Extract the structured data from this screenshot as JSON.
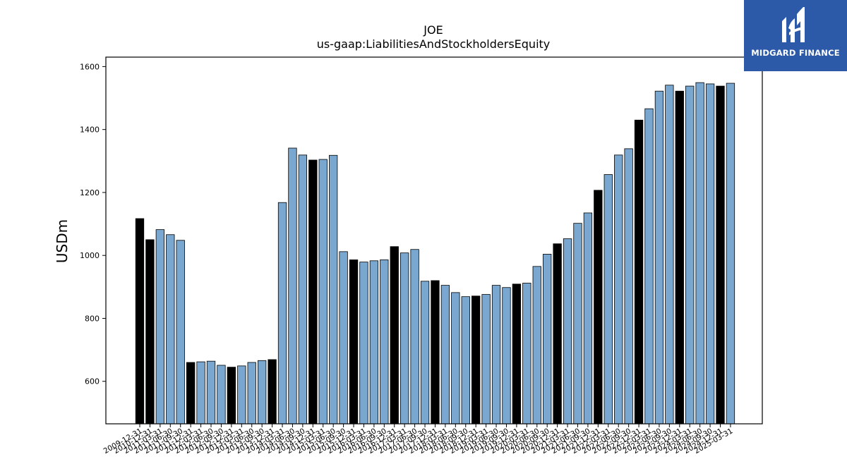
{
  "chart_data": {
    "type": "bar",
    "title": "JOE",
    "subtitle": "us-gaap:LiabilitiesAndStockholdersEquity",
    "ylabel": "USDm",
    "xlabel": "",
    "ylim": [
      465,
      1630
    ],
    "yticks": [
      600,
      800,
      1000,
      1200,
      1400,
      1600
    ],
    "grid": false,
    "colors": {
      "annual": "#000000",
      "quarterly": "#7aa7cf",
      "edge": "#000000"
    },
    "categories": [
      "2009-12-31",
      "2010-12-31",
      "2011-03-31",
      "2011-06-30",
      "2011-09-30",
      "2011-12-31",
      "2012-03-31",
      "2012-06-30",
      "2012-09-30",
      "2012-12-31",
      "2013-03-31",
      "2013-06-30",
      "2013-09-30",
      "2013-12-31",
      "2014-03-31",
      "2014-06-30",
      "2014-09-30",
      "2014-12-31",
      "2015-03-31",
      "2015-06-30",
      "2015-09-30",
      "2015-12-31",
      "2016-03-31",
      "2016-06-30",
      "2016-09-30",
      "2016-12-31",
      "2017-03-31",
      "2017-06-30",
      "2017-09-30",
      "2017-12-31",
      "2018-03-31",
      "2018-06-30",
      "2018-09-30",
      "2018-12-31",
      "2019-03-31",
      "2019-06-30",
      "2019-09-30",
      "2019-12-31",
      "2020-03-31",
      "2020-06-30",
      "2020-09-30",
      "2020-12-31",
      "2021-03-31",
      "2021-06-30",
      "2021-09-30",
      "2021-12-31",
      "2022-03-31",
      "2022-06-30",
      "2022-09-30",
      "2022-12-31",
      "2023-03-31",
      "2023-06-30",
      "2023-09-30",
      "2023-12-31",
      "2024-03-31",
      "2024-06-30",
      "2024-09-30",
      "2024-12-31",
      "2025-03-31"
    ],
    "values": [
      1117,
      1050,
      1082,
      1066,
      1048,
      660,
      662,
      664,
      651,
      645,
      649,
      660,
      666,
      669,
      1168,
      1341,
      1319,
      1303,
      1305,
      1318,
      1012,
      986,
      979,
      983,
      986,
      1028,
      1008,
      1019,
      918,
      920,
      905,
      882,
      869,
      871,
      876,
      905,
      898,
      909,
      912,
      965,
      1004,
      1037,
      1053,
      1102,
      1135,
      1207,
      1257,
      1319,
      1339,
      1430,
      1466,
      1522,
      1541,
      1522,
      1538,
      1549,
      1545,
      1538,
      1547
    ],
    "annual_flags": [
      1,
      1,
      0,
      0,
      0,
      1,
      0,
      0,
      0,
      1,
      0,
      0,
      0,
      1,
      0,
      0,
      0,
      1,
      0,
      0,
      0,
      1,
      0,
      0,
      0,
      1,
      0,
      0,
      0,
      1,
      0,
      0,
      0,
      1,
      0,
      0,
      0,
      1,
      0,
      0,
      0,
      1,
      0,
      0,
      0,
      1,
      0,
      0,
      0,
      1,
      0,
      0,
      0,
      1,
      0,
      0,
      0,
      1,
      0
    ]
  },
  "branding": {
    "logo_text": "MIDGARD FINANCE"
  }
}
